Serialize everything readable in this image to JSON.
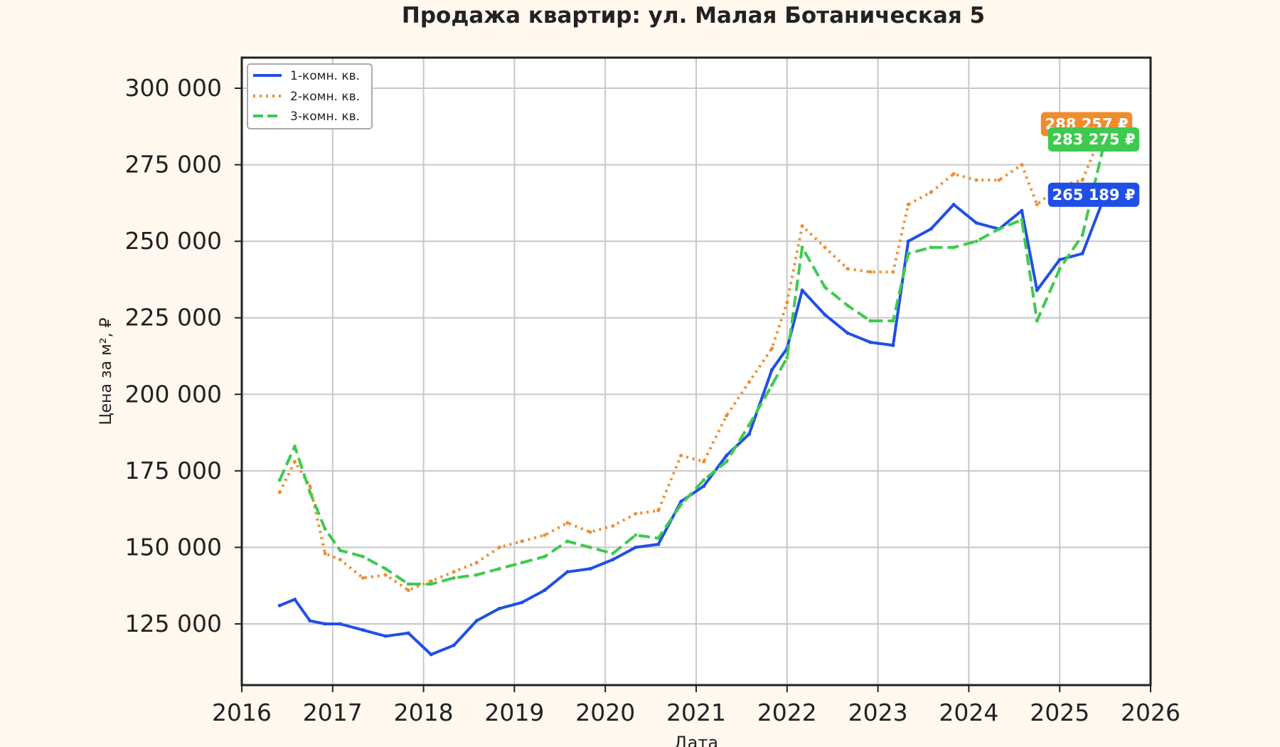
{
  "chart_data": {
    "type": "line",
    "title": "Продажа квартир: ул. Малая Ботаническая 5",
    "xlabel": "Дата",
    "ylabel": "Цена за м², ₽",
    "xlim": [
      "2016-01-01",
      "2026-01-01"
    ],
    "ylim": [
      105000,
      310000
    ],
    "x_ticks": [
      "2016",
      "2017",
      "2018",
      "2019",
      "2020",
      "2021",
      "2022",
      "2023",
      "2024",
      "2025",
      "2026"
    ],
    "y_ticks": [
      {
        "value": 125000,
        "label": "125 000"
      },
      {
        "value": 150000,
        "label": "150 000"
      },
      {
        "value": 175000,
        "label": "175 000"
      },
      {
        "value": 200000,
        "label": "200 000"
      },
      {
        "value": 225000,
        "label": "225 000"
      },
      {
        "value": 250000,
        "label": "250 000"
      },
      {
        "value": 275000,
        "label": "275 000"
      },
      {
        "value": 300000,
        "label": "300 000"
      }
    ],
    "grid": true,
    "legend_position": "top-left",
    "series": [
      {
        "name": "1-комн. кв.",
        "color": "#1f4fe6",
        "style": "solid",
        "end_label": "265 189 ₽",
        "x": [
          "2016-06",
          "2016-08",
          "2016-10",
          "2016-12",
          "2017-02",
          "2017-05",
          "2017-08",
          "2017-11",
          "2018-02",
          "2018-05",
          "2018-08",
          "2018-11",
          "2019-02",
          "2019-05",
          "2019-08",
          "2019-11",
          "2020-02",
          "2020-05",
          "2020-08",
          "2020-11",
          "2021-02",
          "2021-05",
          "2021-08",
          "2021-11",
          "2022-01",
          "2022-03",
          "2022-06",
          "2022-09",
          "2022-12",
          "2023-03",
          "2023-05",
          "2023-08",
          "2023-11",
          "2024-02",
          "2024-05",
          "2024-08",
          "2024-10",
          "2025-01",
          "2025-04",
          "2025-07"
        ],
        "y": [
          131000,
          133000,
          126000,
          125000,
          125000,
          123000,
          121000,
          122000,
          115000,
          118000,
          126000,
          130000,
          132000,
          136000,
          142000,
          143000,
          146000,
          150000,
          151000,
          165000,
          170000,
          180000,
          187000,
          208000,
          215000,
          234000,
          226000,
          220000,
          217000,
          216000,
          250000,
          254000,
          262000,
          256000,
          254000,
          260000,
          234000,
          244000,
          246000,
          265189
        ]
      },
      {
        "name": "2-комн. кв.",
        "color": "#f08c2e",
        "style": "dotted",
        "end_label": "288 257 ₽",
        "x": [
          "2016-06",
          "2016-08",
          "2016-10",
          "2016-12",
          "2017-02",
          "2017-05",
          "2017-08",
          "2017-11",
          "2018-02",
          "2018-05",
          "2018-08",
          "2018-11",
          "2019-02",
          "2019-05",
          "2019-08",
          "2019-11",
          "2020-02",
          "2020-05",
          "2020-08",
          "2020-11",
          "2021-02",
          "2021-05",
          "2021-08",
          "2021-11",
          "2022-01",
          "2022-03",
          "2022-06",
          "2022-09",
          "2022-12",
          "2023-03",
          "2023-05",
          "2023-08",
          "2023-11",
          "2024-02",
          "2024-05",
          "2024-08",
          "2024-10",
          "2025-01",
          "2025-04",
          "2025-07"
        ],
        "y": [
          168000,
          178000,
          170000,
          148000,
          146000,
          140000,
          141000,
          136000,
          139000,
          142000,
          145000,
          150000,
          152000,
          154000,
          158000,
          155000,
          157000,
          161000,
          162000,
          180000,
          178000,
          193000,
          204000,
          215000,
          230000,
          255000,
          248000,
          241000,
          240000,
          240000,
          262000,
          266000,
          272000,
          270000,
          270000,
          275000,
          262000,
          268000,
          270000,
          288257
        ]
      },
      {
        "name": "3-комн. кв.",
        "color": "#3ec94f",
        "style": "dashed",
        "end_label": "283 275 ₽",
        "x": [
          "2016-06",
          "2016-08",
          "2016-10",
          "2016-12",
          "2017-02",
          "2017-05",
          "2017-08",
          "2017-11",
          "2018-02",
          "2018-05",
          "2018-08",
          "2018-11",
          "2019-02",
          "2019-05",
          "2019-08",
          "2019-11",
          "2020-02",
          "2020-05",
          "2020-08",
          "2020-11",
          "2021-02",
          "2021-05",
          "2021-08",
          "2021-11",
          "2022-01",
          "2022-03",
          "2022-06",
          "2022-09",
          "2022-12",
          "2023-03",
          "2023-05",
          "2023-08",
          "2023-11",
          "2024-02",
          "2024-05",
          "2024-08",
          "2024-10",
          "2025-01",
          "2025-04",
          "2025-07"
        ],
        "y": [
          172000,
          183000,
          168000,
          156000,
          149000,
          147000,
          143000,
          138000,
          138000,
          140000,
          141000,
          143000,
          145000,
          147000,
          152000,
          150000,
          148000,
          154000,
          153000,
          164000,
          172000,
          178000,
          190000,
          203000,
          212000,
          248000,
          235000,
          229000,
          224000,
          224000,
          246000,
          248000,
          248000,
          250000,
          254000,
          257000,
          224000,
          241000,
          252000,
          283275
        ]
      }
    ]
  }
}
